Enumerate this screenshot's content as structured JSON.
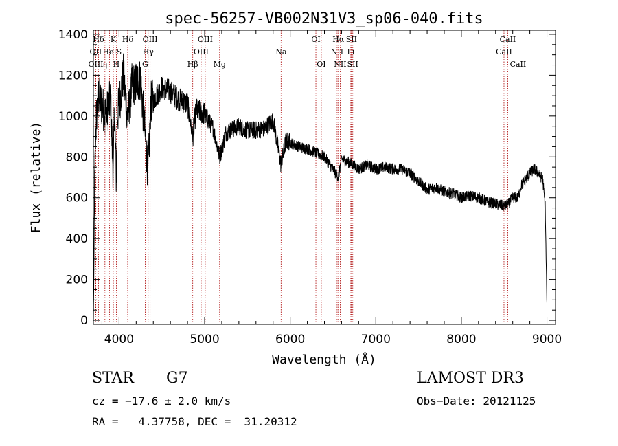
{
  "chart_data": {
    "type": "line",
    "title": "spec-56257-VB002N31V3_sp06-040.fits",
    "xlabel": "Wavelength (Å)",
    "ylabel": "Flux (relative)",
    "xlim": [
      3700,
      9100
    ],
    "ylim": [
      -20,
      1420
    ],
    "x_ticks": [
      4000,
      5000,
      6000,
      7000,
      8000,
      9000
    ],
    "x_tick_labels": [
      "4000",
      "5000",
      "6000",
      "7000",
      "8000",
      "9000"
    ],
    "y_ticks": [
      0,
      200,
      400,
      600,
      800,
      1000,
      1200,
      1400
    ],
    "y_tick_labels": [
      "0",
      "200",
      "400",
      "600",
      "800",
      "1000",
      "1200",
      "1400"
    ],
    "spectrum_anchors": [
      [
        3700,
        0
      ],
      [
        3705,
        180
      ],
      [
        3712,
        600
      ],
      [
        3725,
        900
      ],
      [
        3740,
        1020
      ],
      [
        3760,
        1100
      ],
      [
        3800,
        1050
      ],
      [
        3850,
        1000
      ],
      [
        3900,
        1080
      ],
      [
        3933,
        700
      ],
      [
        3945,
        1050
      ],
      [
        3968,
        680
      ],
      [
        3980,
        1000
      ],
      [
        4050,
        1200
      ],
      [
        4101,
        980
      ],
      [
        4150,
        1150
      ],
      [
        4250,
        1180
      ],
      [
        4305,
        900
      ],
      [
        4340,
        720
      ],
      [
        4370,
        1060
      ],
      [
        4500,
        1140
      ],
      [
        4600,
        1120
      ],
      [
        4700,
        1080
      ],
      [
        4800,
        1060
      ],
      [
        4861,
        900
      ],
      [
        4900,
        1030
      ],
      [
        5000,
        1010
      ],
      [
        5100,
        940
      ],
      [
        5175,
        800
      ],
      [
        5250,
        920
      ],
      [
        5400,
        950
      ],
      [
        5500,
        930
      ],
      [
        5600,
        930
      ],
      [
        5700,
        940
      ],
      [
        5800,
        980
      ],
      [
        5893,
        760
      ],
      [
        5950,
        880
      ],
      [
        6100,
        850
      ],
      [
        6200,
        840
      ],
      [
        6300,
        820
      ],
      [
        6400,
        800
      ],
      [
        6563,
        700
      ],
      [
        6600,
        790
      ],
      [
        6700,
        770
      ],
      [
        6800,
        740
      ],
      [
        6900,
        760
      ],
      [
        7000,
        740
      ],
      [
        7100,
        750
      ],
      [
        7200,
        740
      ],
      [
        7300,
        740
      ],
      [
        7400,
        720
      ],
      [
        7500,
        680
      ],
      [
        7600,
        640
      ],
      [
        7700,
        650
      ],
      [
        7800,
        630
      ],
      [
        7900,
        620
      ],
      [
        8000,
        600
      ],
      [
        8100,
        610
      ],
      [
        8200,
        600
      ],
      [
        8300,
        580
      ],
      [
        8400,
        570
      ],
      [
        8498,
        560
      ],
      [
        8542,
        565
      ],
      [
        8600,
        600
      ],
      [
        8662,
        600
      ],
      [
        8700,
        660
      ],
      [
        8800,
        720
      ],
      [
        8850,
        740
      ],
      [
        8900,
        720
      ],
      [
        8950,
        690
      ],
      [
        8980,
        560
      ],
      [
        9000,
        60
      ]
    ],
    "spectral_lines": [
      {
        "label": "Hδ",
        "wavelength": 3760,
        "row": 1
      },
      {
        "label": "K",
        "wavelength": 3933,
        "row": 1
      },
      {
        "label": "Hδ",
        "wavelength": 4101,
        "row": 1
      },
      {
        "label": "OIII",
        "wavelength": 4363,
        "row": 1
      },
      {
        "label": "OIII",
        "wavelength": 5007,
        "row": 1
      },
      {
        "label": "OI",
        "wavelength": 6300,
        "row": 1
      },
      {
        "label": "Hα",
        "wavelength": 6563,
        "row": 1
      },
      {
        "label": "SII",
        "wavelength": 6716,
        "row": 1
      },
      {
        "label": "CaII",
        "wavelength": 8542,
        "row": 1
      },
      {
        "label": "OII",
        "wavelength": 3727,
        "row": 2
      },
      {
        "label": "HeI",
        "wavelength": 3889,
        "row": 2
      },
      {
        "label": "S",
        "wavelength": 4000,
        "row": 2
      },
      {
        "label": "Hγ",
        "wavelength": 4340,
        "row": 2
      },
      {
        "label": "OIII",
        "wavelength": 4959,
        "row": 2
      },
      {
        "label": "Na",
        "wavelength": 5893,
        "row": 2
      },
      {
        "label": "NII",
        "wavelength": 6548,
        "row": 2
      },
      {
        "label": "Li",
        "wavelength": 6708,
        "row": 2
      },
      {
        "label": "CaII",
        "wavelength": 8498,
        "row": 2
      },
      {
        "label": "OIII",
        "wavelength": 3728,
        "row": 3
      },
      {
        "label": "η",
        "wavelength": 3835,
        "row": 3
      },
      {
        "label": "H",
        "wavelength": 3968,
        "row": 3
      },
      {
        "label": "G",
        "wavelength": 4305,
        "row": 3
      },
      {
        "label": "Hβ",
        "wavelength": 4861,
        "row": 3
      },
      {
        "label": "Mg",
        "wavelength": 5175,
        "row": 3
      },
      {
        "label": "OI",
        "wavelength": 6363,
        "row": 3
      },
      {
        "label": "NII",
        "wavelength": 6584,
        "row": 3
      },
      {
        "label": "SII",
        "wavelength": 6731,
        "row": 3
      },
      {
        "label": "CaII",
        "wavelength": 8662,
        "row": 3
      }
    ]
  },
  "footer": {
    "class_label": "STAR",
    "subclass": "G7",
    "survey": "LAMOST DR3",
    "redshift": "cz = −17.6 ± 2.0 km/s",
    "obs_date": "Obs−Date: 20121125",
    "coords": "RA =   4.37758, DEC =  31.20312"
  },
  "colors": {
    "spectrum": "#000000",
    "line_marker": "#aa0000",
    "axes": "#000000"
  }
}
